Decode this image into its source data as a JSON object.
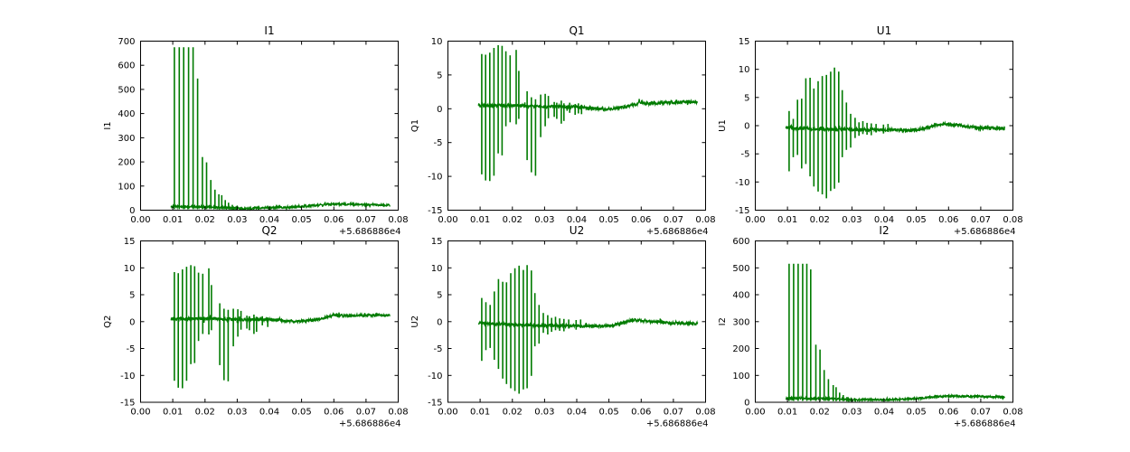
{
  "figure": {
    "background": "#ffffff",
    "series_color": "#007b00",
    "axis_color": "#000000",
    "x_offset_label": "+5.686886e4"
  },
  "chart_data": [
    {
      "type": "line",
      "title": "I1",
      "ylabel": "I1",
      "xlabel": "",
      "xlim": [
        0.0,
        0.08
      ],
      "ylim": [
        0,
        700
      ],
      "xticks": [
        0.0,
        0.01,
        0.02,
        0.03,
        0.04,
        0.05,
        0.06,
        0.07,
        0.08
      ],
      "xtick_labels": [
        "0.00",
        "0.01",
        "0.02",
        "0.03",
        "0.04",
        "0.05",
        "0.06",
        "0.07",
        "0.08"
      ],
      "yticks": [
        0,
        100,
        200,
        300,
        400,
        500,
        600,
        700
      ],
      "ytick_labels": [
        "0",
        "100",
        "200",
        "300",
        "400",
        "500",
        "600",
        "700"
      ],
      "x_start": 0.0095,
      "x_end": 0.0775,
      "noise": 4,
      "baseline": [
        [
          0.0095,
          15
        ],
        [
          0.02,
          14
        ],
        [
          0.028,
          9
        ],
        [
          0.031,
          6
        ],
        [
          0.034,
          8
        ],
        [
          0.04,
          11
        ],
        [
          0.046,
          12
        ],
        [
          0.05,
          14
        ],
        [
          0.054,
          20
        ],
        [
          0.058,
          24
        ],
        [
          0.062,
          25
        ],
        [
          0.066,
          24
        ],
        [
          0.07,
          22
        ],
        [
          0.074,
          21
        ],
        [
          0.0775,
          21
        ]
      ],
      "spikes": [
        [
          0.0105,
          675,
          4
        ],
        [
          0.012,
          675,
          4
        ],
        [
          0.0134,
          675,
          4
        ],
        [
          0.0149,
          675,
          4
        ],
        [
          0.0163,
          675,
          4
        ],
        [
          0.0177,
          545,
          4
        ],
        [
          0.0192,
          220,
          4
        ],
        [
          0.0205,
          198,
          4
        ],
        [
          0.0218,
          125,
          5
        ],
        [
          0.0231,
          85,
          5
        ],
        [
          0.0243,
          66,
          5
        ],
        [
          0.0252,
          62,
          5
        ],
        [
          0.0263,
          42,
          5
        ],
        [
          0.0273,
          31,
          4
        ],
        [
          0.0285,
          22,
          3
        ],
        [
          0.0297,
          16,
          3
        ],
        [
          0.031,
          12,
          2
        ],
        [
          0.0322,
          9,
          2
        ],
        [
          0.0335,
          8,
          3
        ]
      ]
    },
    {
      "type": "line",
      "title": "Q1",
      "ylabel": "Q1",
      "xlabel": "",
      "xlim": [
        0.0,
        0.08
      ],
      "ylim": [
        -15,
        10
      ],
      "xticks": [
        0.0,
        0.01,
        0.02,
        0.03,
        0.04,
        0.05,
        0.06,
        0.07,
        0.08
      ],
      "xtick_labels": [
        "0.00",
        "0.01",
        "0.02",
        "0.03",
        "0.04",
        "0.05",
        "0.06",
        "0.07",
        "0.08"
      ],
      "yticks": [
        -15,
        -10,
        -5,
        0,
        5,
        10
      ],
      "ytick_labels": [
        "-15",
        "-10",
        "-5",
        "0",
        "5",
        "10"
      ],
      "x_start": 0.0095,
      "x_end": 0.0775,
      "noise": 0.22,
      "baseline": [
        [
          0.0095,
          0.45
        ],
        [
          0.02,
          0.5
        ],
        [
          0.03,
          0.35
        ],
        [
          0.04,
          0.3
        ],
        [
          0.046,
          0.0
        ],
        [
          0.049,
          -0.15
        ],
        [
          0.052,
          0.1
        ],
        [
          0.056,
          0.35
        ],
        [
          0.059,
          0.75
        ],
        [
          0.06,
          0.9
        ],
        [
          0.062,
          0.8
        ],
        [
          0.066,
          0.85
        ],
        [
          0.07,
          0.95
        ],
        [
          0.074,
          1.0
        ],
        [
          0.0775,
          1.0
        ]
      ],
      "spikes": [
        [
          0.0105,
          8.1,
          -9.7
        ],
        [
          0.0117,
          8.0,
          -10.6
        ],
        [
          0.013,
          8.3,
          -10.7
        ],
        [
          0.0143,
          9.0,
          -9.9
        ],
        [
          0.0156,
          9.4,
          -6.6
        ],
        [
          0.0168,
          9.3,
          -6.9
        ],
        [
          0.018,
          8.5,
          -2.6
        ],
        [
          0.0193,
          7.9,
          -2.0
        ],
        [
          0.0212,
          8.7,
          -2.3
        ],
        [
          0.022,
          5.6,
          -1.5
        ],
        [
          0.0246,
          2.6,
          -7.6
        ],
        [
          0.0259,
          1.7,
          -9.4
        ],
        [
          0.0272,
          1.4,
          -9.9
        ],
        [
          0.0288,
          2.1,
          -4.2
        ],
        [
          0.0302,
          2.2,
          -2.6
        ],
        [
          0.0312,
          1.9,
          -1.4
        ],
        [
          0.033,
          1.0,
          -1.2
        ],
        [
          0.0338,
          0.9,
          -1.5
        ],
        [
          0.0352,
          1.2,
          -2.2
        ],
        [
          0.036,
          0.8,
          -1.8
        ],
        [
          0.0378,
          0.9,
          -0.6
        ],
        [
          0.0395,
          0.7,
          -0.9
        ],
        [
          0.0405,
          0.8,
          -0.7
        ],
        [
          0.0415,
          0.6,
          -0.8
        ]
      ]
    },
    {
      "type": "line",
      "title": "U1",
      "ylabel": "U1",
      "xlabel": "",
      "xlim": [
        0.0,
        0.08
      ],
      "ylim": [
        -15,
        15
      ],
      "xticks": [
        0.0,
        0.01,
        0.02,
        0.03,
        0.04,
        0.05,
        0.06,
        0.07,
        0.08
      ],
      "xtick_labels": [
        "0.00",
        "0.01",
        "0.02",
        "0.03",
        "0.04",
        "0.05",
        "0.06",
        "0.07",
        "0.08"
      ],
      "yticks": [
        -15,
        -10,
        -5,
        0,
        5,
        10,
        15
      ],
      "ytick_labels": [
        "-15",
        "-10",
        "-5",
        "0",
        "5",
        "10",
        "15"
      ],
      "x_start": 0.0095,
      "x_end": 0.0775,
      "noise": 0.26,
      "baseline": [
        [
          0.0095,
          -0.35
        ],
        [
          0.02,
          -0.6
        ],
        [
          0.03,
          -0.7
        ],
        [
          0.04,
          -0.75
        ],
        [
          0.046,
          -0.8
        ],
        [
          0.05,
          -0.75
        ],
        [
          0.053,
          -0.4
        ],
        [
          0.056,
          0.1
        ],
        [
          0.058,
          0.3
        ],
        [
          0.06,
          0.2
        ],
        [
          0.063,
          0.1
        ],
        [
          0.066,
          -0.2
        ],
        [
          0.07,
          -0.4
        ],
        [
          0.074,
          -0.45
        ],
        [
          0.0775,
          -0.5
        ]
      ],
      "spikes": [
        [
          0.0105,
          2.6,
          -8.1
        ],
        [
          0.0118,
          1.2,
          -5.6
        ],
        [
          0.0131,
          4.6,
          -5.2
        ],
        [
          0.0144,
          4.8,
          -7.6
        ],
        [
          0.0157,
          8.4,
          -6.8
        ],
        [
          0.017,
          8.5,
          -9.0
        ],
        [
          0.0182,
          6.6,
          -10.8
        ],
        [
          0.0195,
          7.9,
          -11.7
        ],
        [
          0.0208,
          8.8,
          -12.2
        ],
        [
          0.0221,
          9.0,
          -12.9
        ],
        [
          0.0234,
          9.6,
          -11.6
        ],
        [
          0.0246,
          10.3,
          -11.2
        ],
        [
          0.0259,
          9.6,
          -10.1
        ],
        [
          0.027,
          6.3,
          -5.6
        ],
        [
          0.0283,
          4.1,
          -4.3
        ],
        [
          0.0296,
          2.1,
          -3.9
        ],
        [
          0.031,
          1.4,
          -2.2
        ],
        [
          0.0322,
          0.6,
          -1.8
        ],
        [
          0.0334,
          0.8,
          -1.5
        ],
        [
          0.0347,
          0.5,
          -1.6
        ],
        [
          0.036,
          0.4,
          -1.7
        ],
        [
          0.0375,
          0.3,
          -1.2
        ],
        [
          0.0398,
          0.2,
          -1.4
        ],
        [
          0.0412,
          0.3,
          -1.1
        ]
      ]
    },
    {
      "type": "line",
      "title": "Q2",
      "ylabel": "Q2",
      "xlabel": "",
      "xlim": [
        0.0,
        0.08
      ],
      "ylim": [
        -15,
        15
      ],
      "xticks": [
        0.0,
        0.01,
        0.02,
        0.03,
        0.04,
        0.05,
        0.06,
        0.07,
        0.08
      ],
      "xtick_labels": [
        "0.00",
        "0.01",
        "0.02",
        "0.03",
        "0.04",
        "0.05",
        "0.06",
        "0.07",
        "0.08"
      ],
      "yticks": [
        -15,
        -10,
        -5,
        0,
        5,
        10,
        15
      ],
      "ytick_labels": [
        "-15",
        "-10",
        "-5",
        "0",
        "5",
        "10",
        "15"
      ],
      "x_start": 0.0095,
      "x_end": 0.0775,
      "noise": 0.26,
      "baseline": [
        [
          0.0095,
          0.5
        ],
        [
          0.02,
          0.55
        ],
        [
          0.03,
          0.4
        ],
        [
          0.04,
          0.35
        ],
        [
          0.046,
          0.1
        ],
        [
          0.049,
          -0.05
        ],
        [
          0.052,
          0.2
        ],
        [
          0.056,
          0.5
        ],
        [
          0.059,
          1.0
        ],
        [
          0.06,
          1.25
        ],
        [
          0.062,
          1.1
        ],
        [
          0.066,
          1.1
        ],
        [
          0.07,
          1.15
        ],
        [
          0.074,
          1.2
        ],
        [
          0.0775,
          1.15
        ]
      ],
      "spikes": [
        [
          0.0105,
          9.2,
          -11.0
        ],
        [
          0.0117,
          9.0,
          -12.3
        ],
        [
          0.013,
          9.7,
          -12.4
        ],
        [
          0.0143,
          10.2,
          -11.0
        ],
        [
          0.0156,
          10.5,
          -7.9
        ],
        [
          0.0168,
          10.3,
          -7.7
        ],
        [
          0.018,
          9.1,
          -3.6
        ],
        [
          0.0193,
          8.9,
          -2.3
        ],
        [
          0.0212,
          9.9,
          -2.4
        ],
        [
          0.022,
          6.8,
          -1.6
        ],
        [
          0.0246,
          3.4,
          -8.1
        ],
        [
          0.0259,
          2.4,
          -10.9
        ],
        [
          0.0272,
          2.2,
          -11.1
        ],
        [
          0.0288,
          2.4,
          -4.6
        ],
        [
          0.0302,
          2.3,
          -2.8
        ],
        [
          0.0312,
          2.0,
          -1.5
        ],
        [
          0.033,
          1.1,
          -1.3
        ],
        [
          0.0338,
          1.0,
          -1.6
        ],
        [
          0.0352,
          1.3,
          -2.3
        ],
        [
          0.036,
          0.9,
          -1.9
        ],
        [
          0.0378,
          1.0,
          -0.7
        ],
        [
          0.0395,
          0.8,
          -1.0
        ]
      ]
    },
    {
      "type": "line",
      "title": "U2",
      "ylabel": "U2",
      "xlabel": "",
      "xlim": [
        0.0,
        0.08
      ],
      "ylim": [
        -15,
        15
      ],
      "xticks": [
        0.0,
        0.01,
        0.02,
        0.03,
        0.04,
        0.05,
        0.06,
        0.07,
        0.08
      ],
      "xtick_labels": [
        "0.00",
        "0.01",
        "0.02",
        "0.03",
        "0.04",
        "0.05",
        "0.06",
        "0.07",
        "0.08"
      ],
      "yticks": [
        -15,
        -10,
        -5,
        0,
        5,
        10,
        15
      ],
      "ytick_labels": [
        "-15",
        "-10",
        "-5",
        "0",
        "5",
        "10",
        "15"
      ],
      "x_start": 0.0095,
      "x_end": 0.0775,
      "noise": 0.26,
      "baseline": [
        [
          0.0095,
          -0.3
        ],
        [
          0.02,
          -0.6
        ],
        [
          0.03,
          -0.75
        ],
        [
          0.04,
          -0.8
        ],
        [
          0.046,
          -0.85
        ],
        [
          0.05,
          -0.8
        ],
        [
          0.053,
          -0.45
        ],
        [
          0.056,
          0.05
        ],
        [
          0.058,
          0.3
        ],
        [
          0.06,
          0.25
        ],
        [
          0.063,
          0.05
        ],
        [
          0.066,
          -0.15
        ],
        [
          0.07,
          -0.3
        ],
        [
          0.074,
          -0.35
        ],
        [
          0.0775,
          -0.35
        ]
      ],
      "spikes": [
        [
          0.0105,
          4.4,
          -7.3
        ],
        [
          0.0118,
          3.6,
          -5.3
        ],
        [
          0.0131,
          3.1,
          -4.9
        ],
        [
          0.0144,
          5.6,
          -7.1
        ],
        [
          0.0157,
          7.9,
          -8.8
        ],
        [
          0.017,
          7.4,
          -10.6
        ],
        [
          0.0182,
          7.3,
          -11.6
        ],
        [
          0.0195,
          9.0,
          -12.4
        ],
        [
          0.0208,
          9.9,
          -12.9
        ],
        [
          0.0221,
          10.4,
          -13.4
        ],
        [
          0.0234,
          9.6,
          -12.6
        ],
        [
          0.0246,
          10.5,
          -12.4
        ],
        [
          0.0259,
          9.5,
          -10.1
        ],
        [
          0.027,
          5.3,
          -4.6
        ],
        [
          0.0283,
          3.1,
          -4.1
        ],
        [
          0.0296,
          1.6,
          -2.1
        ],
        [
          0.031,
          1.2,
          -2.4
        ],
        [
          0.0322,
          0.7,
          -1.9
        ],
        [
          0.0334,
          0.9,
          -1.6
        ],
        [
          0.0347,
          0.6,
          -1.7
        ],
        [
          0.036,
          0.5,
          -1.8
        ],
        [
          0.0375,
          0.4,
          -1.3
        ],
        [
          0.0398,
          0.3,
          -1.5
        ],
        [
          0.0412,
          0.4,
          -1.2
        ]
      ]
    },
    {
      "type": "line",
      "title": "I2",
      "ylabel": "I2",
      "xlabel": "",
      "xlim": [
        0.0,
        0.08
      ],
      "ylim": [
        0,
        600
      ],
      "xticks": [
        0.0,
        0.01,
        0.02,
        0.03,
        0.04,
        0.05,
        0.06,
        0.07,
        0.08
      ],
      "xtick_labels": [
        "0.00",
        "0.01",
        "0.02",
        "0.03",
        "0.04",
        "0.05",
        "0.06",
        "0.07",
        "0.08"
      ],
      "yticks": [
        0,
        100,
        200,
        300,
        400,
        500,
        600
      ],
      "ytick_labels": [
        "0",
        "100",
        "200",
        "300",
        "400",
        "500",
        "600"
      ],
      "x_start": 0.0095,
      "x_end": 0.0775,
      "noise": 3.5,
      "baseline": [
        [
          0.0095,
          15
        ],
        [
          0.02,
          14
        ],
        [
          0.028,
          11
        ],
        [
          0.032,
          9
        ],
        [
          0.036,
          10
        ],
        [
          0.04,
          10
        ],
        [
          0.046,
          11
        ],
        [
          0.05,
          14
        ],
        [
          0.054,
          19
        ],
        [
          0.058,
          22
        ],
        [
          0.062,
          23
        ],
        [
          0.066,
          22
        ],
        [
          0.07,
          21
        ],
        [
          0.074,
          20
        ],
        [
          0.0775,
          19
        ]
      ],
      "spikes": [
        [
          0.0105,
          515,
          5
        ],
        [
          0.0119,
          515,
          5
        ],
        [
          0.0133,
          515,
          5
        ],
        [
          0.0147,
          515,
          5
        ],
        [
          0.016,
          515,
          5
        ],
        [
          0.0172,
          494,
          5
        ],
        [
          0.0188,
          214,
          5
        ],
        [
          0.0201,
          196,
          5
        ],
        [
          0.0214,
          120,
          5
        ],
        [
          0.0227,
          86,
          5
        ],
        [
          0.0242,
          64,
          4
        ],
        [
          0.0251,
          56,
          4
        ],
        [
          0.0262,
          36,
          4
        ],
        [
          0.0273,
          27,
          4
        ],
        [
          0.0285,
          20,
          3
        ],
        [
          0.0297,
          15,
          3
        ],
        [
          0.031,
          11,
          3
        ]
      ]
    }
  ]
}
